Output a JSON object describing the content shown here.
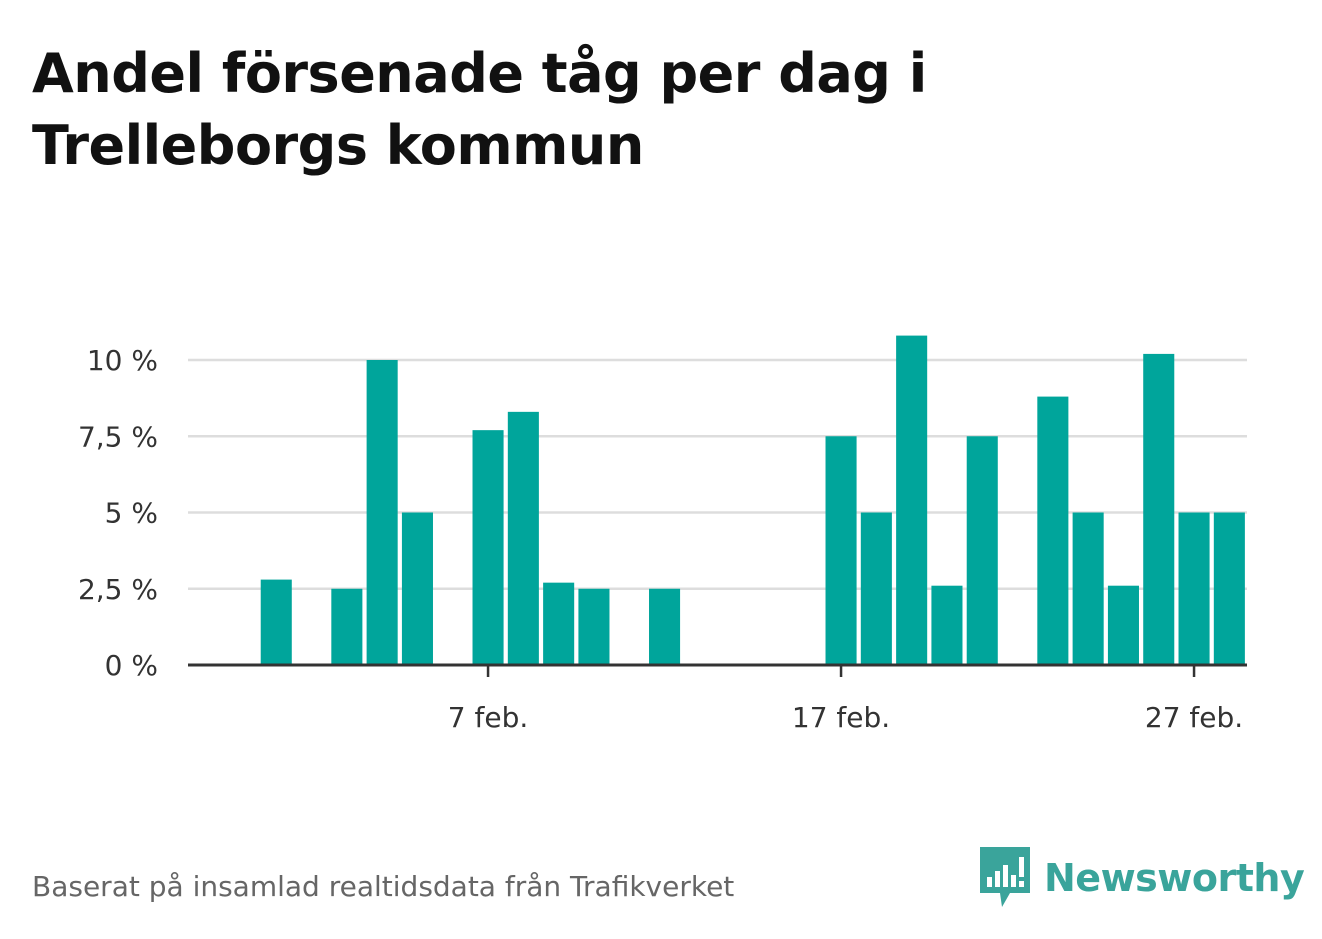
{
  "title": "Andel försenade tåg per dag i Trelleborgs kommun",
  "source_note": "Baserat på insamlad realtidsdata från Trafikverket",
  "logo": {
    "text": "Newsworthy",
    "icon": "newsworthy-bar-chart-icon"
  },
  "colors": {
    "bar": "#00a59b",
    "grid": "#dddddd",
    "axis": "#333333",
    "brand": "#3aa49b"
  },
  "chart_data": {
    "type": "bar",
    "x_axis": "date",
    "x_range": [
      "2025-01-30",
      "2025-03-01"
    ],
    "x_ticks": [
      {
        "date": "2025-02-07",
        "label": "7 feb."
      },
      {
        "date": "2025-02-17",
        "label": "17 feb."
      },
      {
        "date": "2025-02-27",
        "label": "27 feb."
      }
    ],
    "ylim": [
      0,
      11
    ],
    "y_ticks": [
      {
        "value": 0,
        "label": "0 %"
      },
      {
        "value": 2.5,
        "label": "2,5 %"
      },
      {
        "value": 5,
        "label": "5 %"
      },
      {
        "value": 7.5,
        "label": "7,5 %"
      },
      {
        "value": 10,
        "label": "10 %"
      }
    ],
    "grid": true,
    "data": [
      {
        "date": "2025-02-01",
        "value": 2.8
      },
      {
        "date": "2025-02-03",
        "value": 2.5
      },
      {
        "date": "2025-02-04",
        "value": 10.0
      },
      {
        "date": "2025-02-05",
        "value": 5.0
      },
      {
        "date": "2025-02-07",
        "value": 7.7
      },
      {
        "date": "2025-02-08",
        "value": 8.3
      },
      {
        "date": "2025-02-09",
        "value": 2.7
      },
      {
        "date": "2025-02-10",
        "value": 2.5
      },
      {
        "date": "2025-02-12",
        "value": 2.5
      },
      {
        "date": "2025-02-17",
        "value": 7.5
      },
      {
        "date": "2025-02-18",
        "value": 5.0
      },
      {
        "date": "2025-02-19",
        "value": 10.8
      },
      {
        "date": "2025-02-20",
        "value": 2.6
      },
      {
        "date": "2025-02-21",
        "value": 7.5
      },
      {
        "date": "2025-02-23",
        "value": 8.8
      },
      {
        "date": "2025-02-24",
        "value": 5.0
      },
      {
        "date": "2025-02-25",
        "value": 2.6
      },
      {
        "date": "2025-02-26",
        "value": 10.2
      },
      {
        "date": "2025-02-27",
        "value": 5.0
      },
      {
        "date": "2025-02-28",
        "value": 5.0
      }
    ]
  }
}
